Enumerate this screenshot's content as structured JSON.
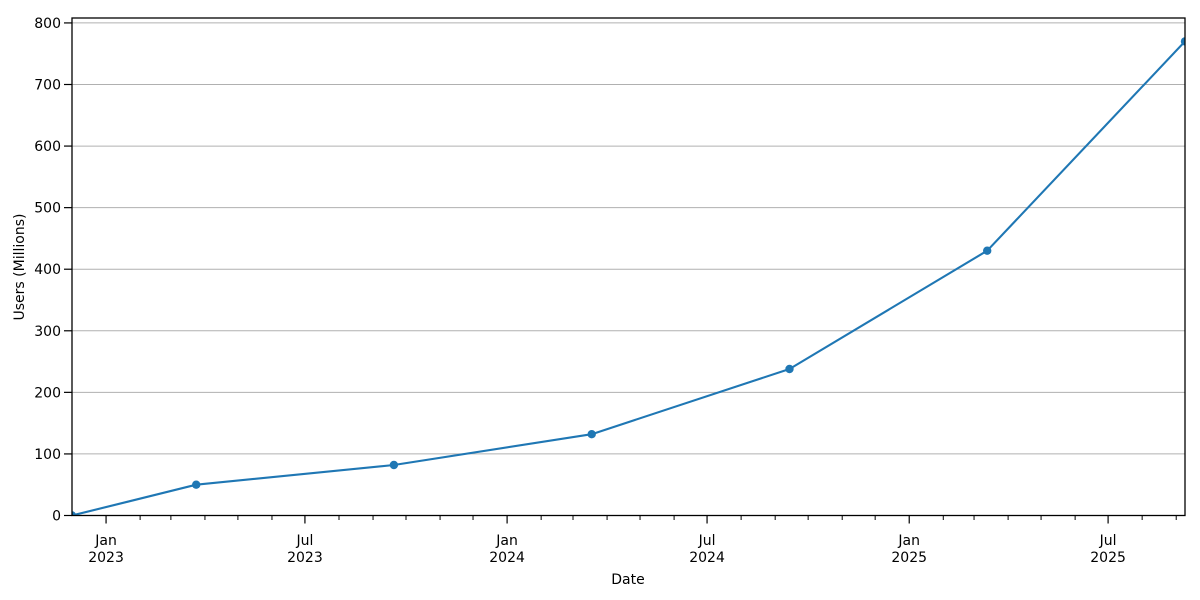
{
  "chart_data": {
    "type": "line",
    "title": "",
    "xlabel": "Date",
    "ylabel": "Users (Millions)",
    "x": [
      "2022-12-01",
      "2023-03-24",
      "2023-09-20",
      "2024-03-18",
      "2024-09-14",
      "2025-03-13",
      "2025-09-09"
    ],
    "series": [
      {
        "name": "Users (Millions)",
        "color": "#1f77b4",
        "marker": "circle",
        "values": [
          0,
          50,
          82,
          132,
          238,
          430,
          770
        ]
      }
    ],
    "ylim": [
      0,
      808
    ],
    "yticks": [
      0,
      100,
      200,
      300,
      400,
      500,
      600,
      700,
      800
    ],
    "xticks": [
      {
        "date": "2023-01-01",
        "line1": "Jan",
        "line2": "2023"
      },
      {
        "date": "2023-07-01",
        "line1": "Jul",
        "line2": "2023"
      },
      {
        "date": "2024-01-01",
        "line1": "Jan",
        "line2": "2024"
      },
      {
        "date": "2024-07-01",
        "line1": "Jul",
        "line2": "2024"
      },
      {
        "date": "2025-01-01",
        "line1": "Jan",
        "line2": "2025"
      },
      {
        "date": "2025-07-01",
        "line1": "Jul",
        "line2": "2025"
      }
    ],
    "minor_xticks": "monthly",
    "grid": "horizontal",
    "grid_color": "#b0b0b0",
    "axis_color": "#000000",
    "background_color": "#ffffff",
    "legend": null
  }
}
